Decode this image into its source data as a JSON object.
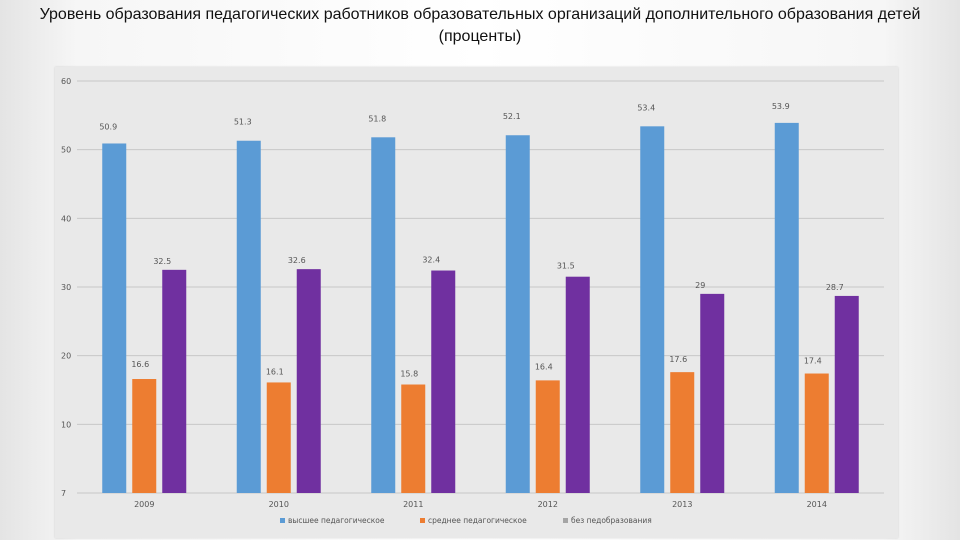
{
  "title": {
    "line1": "Уровень образования педагогических работников образовательных организаций дополнительного образования детей",
    "line2": "(проценты)"
  },
  "colors": {
    "series1": "#5b9bd5",
    "series2": "#ed7d31",
    "series3": "#7030a0",
    "legend3": "#a5a5a5",
    "grid": "#c8c8c8",
    "panel": "#e9e9e9"
  },
  "chart_data": {
    "type": "bar",
    "title": "Уровень образования педагогических работников образовательных организаций дополнительного образования детей (проценты)",
    "categories": [
      "2009",
      "2010",
      "2011",
      "2012",
      "2013",
      "2014"
    ],
    "series": [
      {
        "name": "высшее педагогическое",
        "values": [
          50.9,
          51.3,
          51.8,
          52.1,
          53.4,
          53.9
        ],
        "labels": [
          "50.9",
          "51.3",
          "51.8",
          "52.1",
          "53.4",
          "53.9"
        ]
      },
      {
        "name": "среднее педагогическое",
        "values": [
          16.6,
          16.1,
          15.8,
          16.4,
          17.6,
          17.4
        ],
        "labels": [
          "16.6",
          "16.1",
          "15.8",
          "16.4",
          "17.6",
          "17.4"
        ]
      },
      {
        "name": "без педобразования",
        "values": [
          32.5,
          32.6,
          32.4,
          31.5,
          29,
          28.7
        ],
        "labels": [
          "32.5",
          "32.6",
          "32.4",
          "31.5",
          "29",
          "28.7"
        ]
      }
    ],
    "yticks": [
      "7",
      "10",
      "20",
      "30",
      "40",
      "50",
      "60"
    ],
    "ylim": [
      0,
      60
    ],
    "xlabel": "",
    "ylabel": "",
    "grid": true,
    "legend_position": "bottom"
  }
}
